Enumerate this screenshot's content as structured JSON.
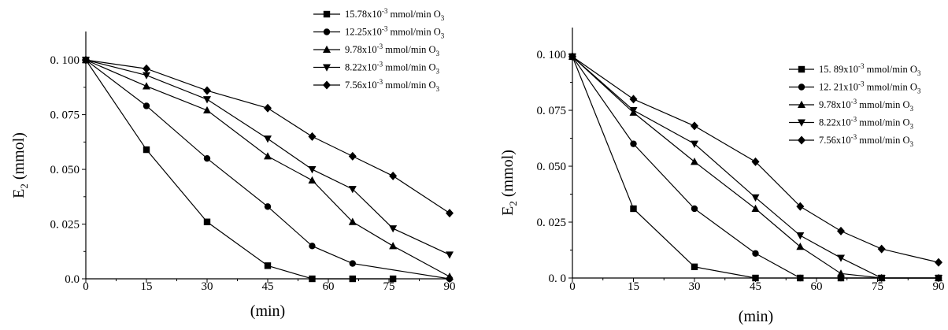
{
  "chart_data": [
    {
      "type": "line",
      "xlabel": "(min)",
      "ylabel": "E2 (mmol)",
      "ylabel_main": "E",
      "ylabel_sub": "2",
      "ylabel_unit": "(mmol)",
      "xlim": [
        0,
        90
      ],
      "ylim": [
        0,
        0.113
      ],
      "x_ticks": [
        0,
        15,
        30,
        45,
        60,
        75,
        90
      ],
      "x_tick_labels": [
        "0",
        "15",
        "30",
        "45",
        "60",
        "75",
        "90"
      ],
      "y_ticks": [
        0,
        0.025,
        0.05,
        0.075,
        0.1
      ],
      "y_tick_labels": [
        "0.0",
        "0. 025",
        "0. 050",
        "0. 075",
        "0. 100"
      ],
      "grid": false,
      "legend_position": "top-right",
      "series": [
        {
          "name": "15.78x10-3 mmol/min O3",
          "rate": "15.78",
          "marker": "square",
          "x": [
            0,
            15,
            30,
            45,
            56,
            66,
            76
          ],
          "y": [
            0.1,
            0.059,
            0.026,
            0.006,
            0,
            0,
            0
          ]
        },
        {
          "name": "12.25x10-3 mmol/min O3",
          "rate": "12.25",
          "marker": "circle",
          "x": [
            0,
            15,
            30,
            45,
            56,
            66,
            90
          ],
          "y": [
            0.1,
            0.079,
            0.055,
            0.033,
            0.015,
            0.007,
            0
          ]
        },
        {
          "name": "9.78x10-3 mmol/min O3",
          "rate": "9.78",
          "marker": "triangle-up",
          "x": [
            0,
            15,
            30,
            45,
            56,
            66,
            76,
            90
          ],
          "y": [
            0.1,
            0.088,
            0.077,
            0.056,
            0.045,
            0.026,
            0.015,
            0.001
          ]
        },
        {
          "name": "8.22x10-3 mmol/min O3",
          "rate": "8.22",
          "marker": "triangle-down",
          "x": [
            0,
            15,
            30,
            45,
            56,
            66,
            76,
            90
          ],
          "y": [
            0.1,
            0.093,
            0.082,
            0.064,
            0.05,
            0.041,
            0.023,
            0.011
          ]
        },
        {
          "name": "7.56x10-3 mmol/min O3",
          "rate": "7.56",
          "marker": "diamond",
          "x": [
            0,
            15,
            30,
            45,
            56,
            66,
            76,
            90
          ],
          "y": [
            0.1,
            0.096,
            0.086,
            0.078,
            0.065,
            0.056,
            0.047,
            0.03
          ]
        }
      ]
    },
    {
      "type": "line",
      "xlabel": "(min)",
      "ylabel": "E2 (mmol)",
      "ylabel_main": "E",
      "ylabel_sub": "2",
      "ylabel_unit": "(mmol)",
      "xlim": [
        0,
        90
      ],
      "ylim": [
        0,
        0.112
      ],
      "x_ticks": [
        0,
        15,
        30,
        45,
        60,
        75,
        90
      ],
      "x_tick_labels": [
        "0",
        "15",
        "30",
        "45",
        "60",
        "75",
        "90"
      ],
      "y_ticks": [
        0,
        0.025,
        0.05,
        0.075,
        0.1
      ],
      "y_tick_labels": [
        "0. 0",
        "0. 025",
        "0. 050",
        "0. 075",
        "0. 100"
      ],
      "grid": false,
      "legend_position": "right",
      "series": [
        {
          "name": "15.89x10-3 mmol/min O3",
          "rate": "15. 89",
          "marker": "square",
          "x": [
            0,
            15,
            30,
            45,
            56,
            66,
            76,
            90
          ],
          "y": [
            0.099,
            0.031,
            0.005,
            0,
            0,
            0,
            0,
            0
          ]
        },
        {
          "name": "12.21x10-3 mmol/min O3",
          "rate": "12. 21",
          "marker": "circle",
          "x": [
            0,
            15,
            30,
            45,
            56,
            66,
            76,
            90
          ],
          "y": [
            0.099,
            0.06,
            0.031,
            0.011,
            0,
            0,
            0,
            0
          ]
        },
        {
          "name": "9.78x10-3 mmol/min O3",
          "rate": "9.78",
          "marker": "triangle-up",
          "x": [
            0,
            15,
            30,
            45,
            56,
            66,
            76,
            90
          ],
          "y": [
            0.099,
            0.074,
            0.052,
            0.031,
            0.014,
            0.002,
            0,
            0
          ]
        },
        {
          "name": "8.22x10-3 mmol/min O3",
          "rate": "8.22",
          "marker": "triangle-down",
          "x": [
            0,
            15,
            30,
            45,
            56,
            66,
            76,
            90
          ],
          "y": [
            0.099,
            0.075,
            0.06,
            0.036,
            0.019,
            0.009,
            0,
            0
          ]
        },
        {
          "name": "7.56x10-3 mmol/min O3",
          "rate": "7.56",
          "marker": "diamond",
          "x": [
            0,
            15,
            30,
            45,
            56,
            66,
            76,
            90
          ],
          "y": [
            0.099,
            0.08,
            0.068,
            0.052,
            0.032,
            0.021,
            0.013,
            0.007
          ]
        }
      ]
    }
  ]
}
